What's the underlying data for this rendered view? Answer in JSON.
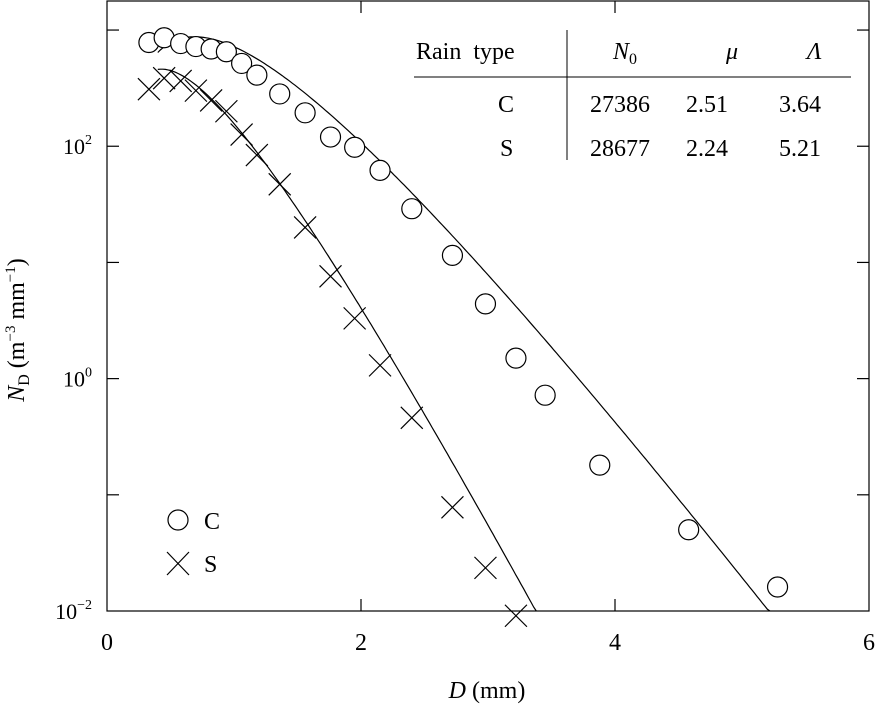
{
  "chart_data": {
    "type": "scatter",
    "xlabel": {
      "var": "D",
      "unit": "(mm)"
    },
    "ylabel": {
      "var": "N",
      "sub": "D",
      "unit_pre": "(m",
      "unit_exp1": "−3",
      "unit_mid": " mm",
      "unit_exp2": "−1",
      "unit_post": ")"
    },
    "xlim": [
      0,
      6
    ],
    "ylim_log10": [
      -2,
      3.25
    ],
    "x_ticks": [
      {
        "value": 0,
        "label": "0"
      },
      {
        "value": 2,
        "label": "2"
      },
      {
        "value": 4,
        "label": "4"
      },
      {
        "value": 6,
        "label": "6"
      }
    ],
    "y_labeled_ticks": [
      {
        "exp": 2,
        "base": "10",
        "sup": "2"
      },
      {
        "exp": 0,
        "base": "10",
        "sup": "0"
      },
      {
        "exp": -2,
        "base": "10",
        "sup": "−2"
      }
    ],
    "y_unlabeled_ticks_log10": [
      3,
      1,
      -1
    ],
    "series": [
      {
        "name": "C",
        "marker": "circle",
        "points": [
          [
            0.33,
            781
          ],
          [
            0.45,
            858
          ],
          [
            0.58,
            765
          ],
          [
            0.7,
            721
          ],
          [
            0.82,
            687
          ],
          [
            0.94,
            650
          ],
          [
            1.06,
            516
          ],
          [
            1.18,
            409
          ],
          [
            1.36,
            282
          ],
          [
            1.56,
            194
          ],
          [
            1.76,
            120
          ],
          [
            1.95,
            98
          ],
          [
            2.15,
            62
          ],
          [
            2.4,
            29
          ],
          [
            2.72,
            11.5
          ],
          [
            2.98,
            4.4
          ],
          [
            3.22,
            1.5
          ],
          [
            3.45,
            0.72
          ],
          [
            3.88,
            0.18
          ],
          [
            4.58,
            0.05
          ],
          [
            5.28,
            0.0161
          ]
        ],
        "fit": {
          "N0": 27386,
          "mu": 2.51,
          "Lambda": 3.64
        }
      },
      {
        "name": "S",
        "marker": "x",
        "points": [
          [
            0.33,
            310
          ],
          [
            0.45,
            385
          ],
          [
            0.58,
            365
          ],
          [
            0.7,
            301
          ],
          [
            0.82,
            248
          ],
          [
            0.94,
            200
          ],
          [
            1.06,
            126
          ],
          [
            1.18,
            84
          ],
          [
            1.36,
            47
          ],
          [
            1.56,
            20
          ],
          [
            1.76,
            7.6
          ],
          [
            1.95,
            3.3
          ],
          [
            2.15,
            1.3
          ],
          [
            2.4,
            0.46
          ],
          [
            2.72,
            0.078
          ],
          [
            2.98,
            0.0235
          ],
          [
            3.22,
            0.0091
          ]
        ],
        "fit": {
          "N0": 28677,
          "mu": 2.24,
          "Lambda": 5.21
        }
      }
    ],
    "legend": {
      "placement": "bottom-left",
      "entries": [
        {
          "marker": "circle",
          "label": "C"
        },
        {
          "marker": "x",
          "label": "S"
        }
      ]
    },
    "table": {
      "placement": "top-right",
      "header": {
        "rain_type": "Rain  type",
        "N": "N",
        "N_sub": "0",
        "mu": "μ",
        "Lambda": "Λ"
      },
      "rows": [
        {
          "type": "C",
          "N0": "27386",
          "mu": "2.51",
          "Lambda": "3.64"
        },
        {
          "type": "S",
          "N0": "28677",
          "mu": "2.24",
          "Lambda": "5.21"
        }
      ]
    }
  }
}
